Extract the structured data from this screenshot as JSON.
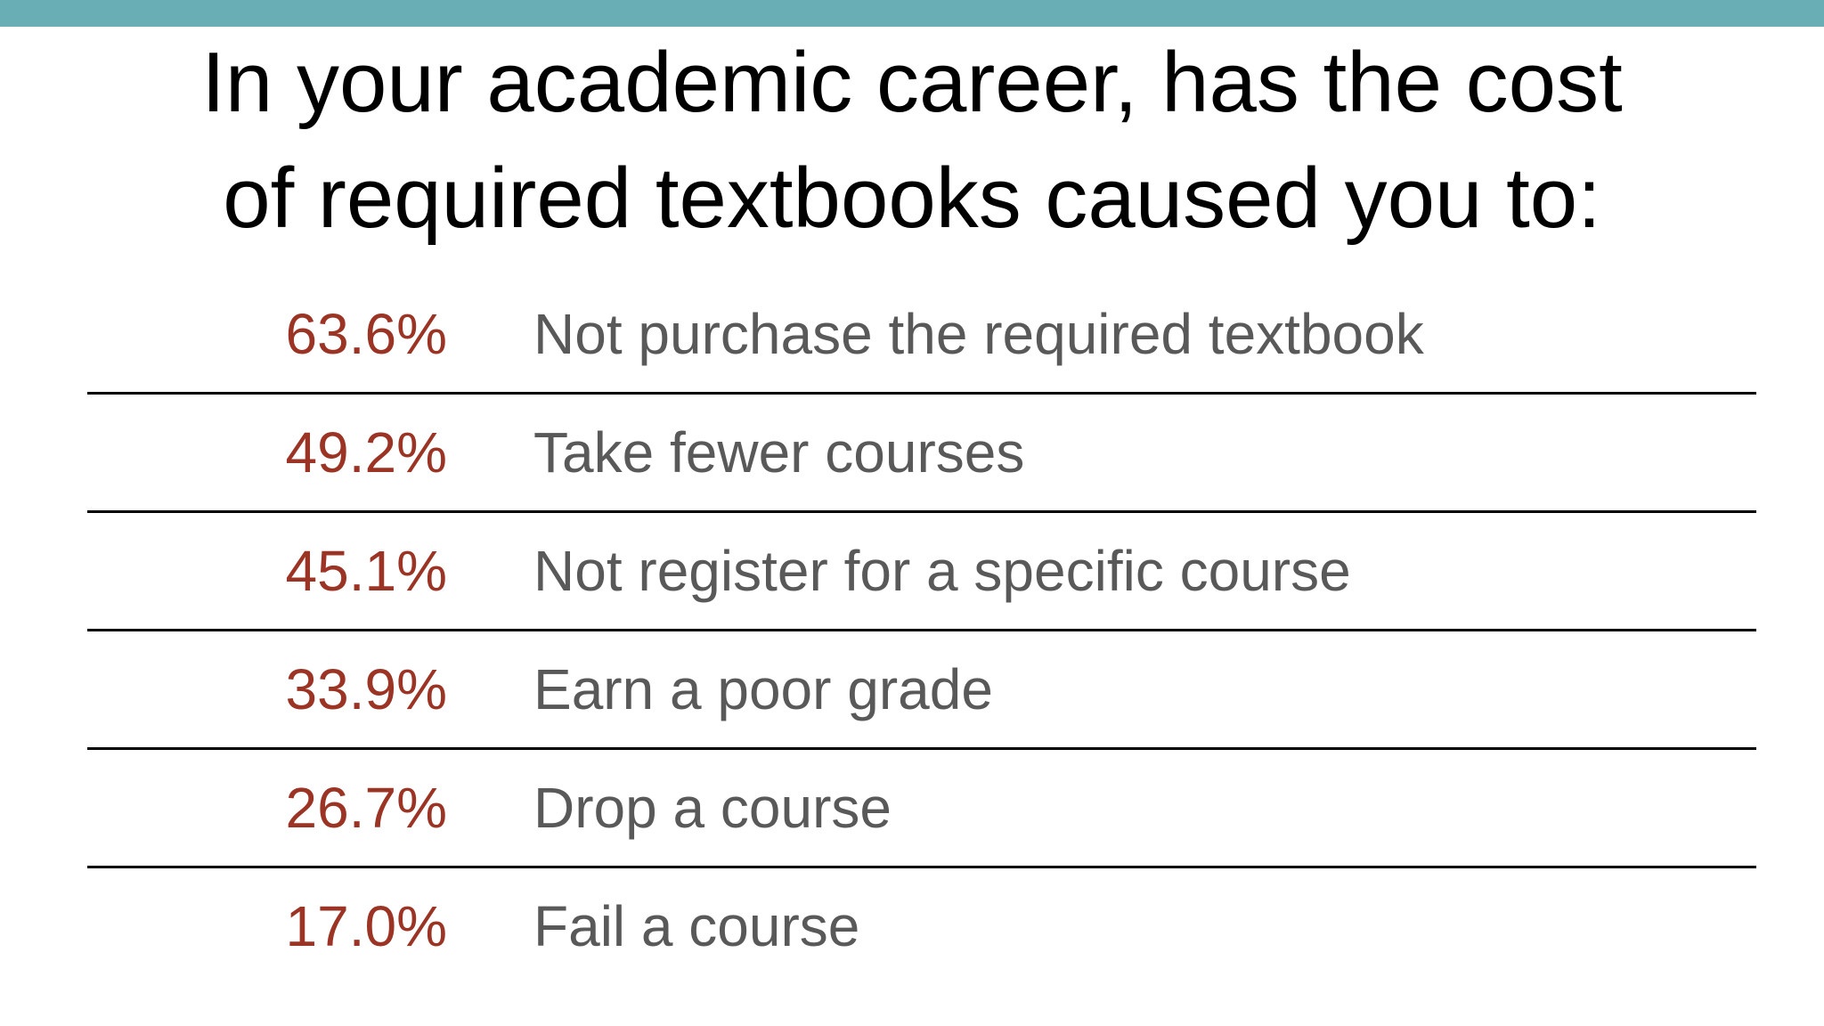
{
  "slide": {
    "title_line1": "In your academic career, has the cost",
    "title_line2": "of required textbooks caused you to:",
    "accent_color": "#6aaeb5",
    "percent_color": "#9b3424",
    "label_color": "#595959"
  },
  "rows": [
    {
      "percent": "63.6%",
      "label": "Not purchase the required textbook"
    },
    {
      "percent": "49.2%",
      "label": "Take fewer courses"
    },
    {
      "percent": "45.1%",
      "label": "Not register for a specific course"
    },
    {
      "percent": "33.9%",
      "label": "Earn a poor grade"
    },
    {
      "percent": "26.7%",
      "label": "Drop a course"
    },
    {
      "percent": "17.0%",
      "label": "Fail a course"
    }
  ]
}
